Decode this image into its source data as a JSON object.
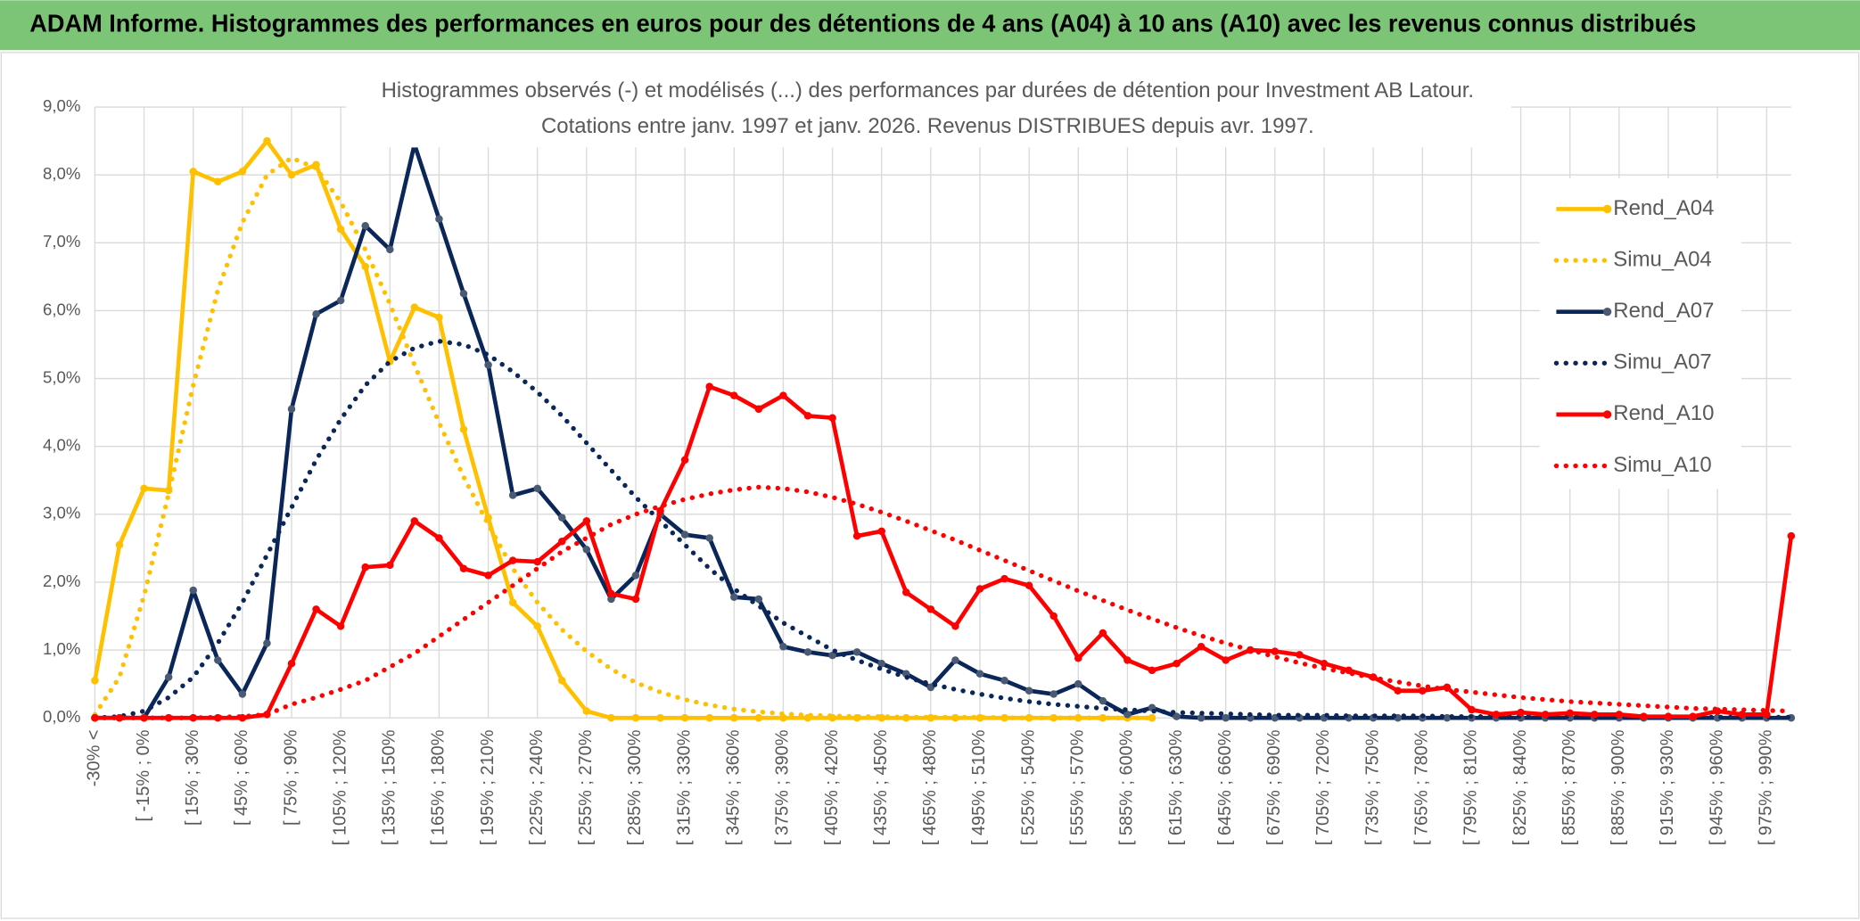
{
  "header": {
    "title": "ADAM Informe. Histogrammes des performances en euros pour des détentions de 4 ans (A04) à 10 ans (A10) avec les revenus connus distribués"
  },
  "chart_data": {
    "type": "line",
    "title": "Histogrammes observés (-) et modélisés (...) des performances par durées de détention pour Investment AB Latour.",
    "subtitle": "Cotations entre janv. 1997 et janv. 2026. Revenus DISTRIBUES depuis avr. 1997.",
    "categories": [
      "-30% <",
      null,
      "[ -15% ; 0%",
      null,
      "[ 15% ; 30%",
      null,
      "[ 45% ; 60%",
      null,
      "[ 75% ; 90%",
      null,
      "[ 105% ; 120%",
      null,
      "[ 135% ; 150%",
      null,
      "[ 165% ; 180%",
      null,
      "[ 195% ; 210%",
      null,
      "[ 225% ; 240%",
      null,
      "[ 255% ; 270%",
      null,
      "[ 285% ; 300%",
      null,
      "[ 315% ; 330%",
      null,
      "[ 345% ; 360%",
      null,
      "[ 375% ; 390%",
      null,
      "[ 405% ; 420%",
      null,
      "[ 435% ; 450%",
      null,
      "[ 465% ; 480%",
      null,
      "[ 495% ; 510%",
      null,
      "[ 525% ; 540%",
      null,
      "[ 555% ; 570%",
      null,
      "[ 585% ; 600%",
      null,
      "[ 615% ; 630%",
      null,
      "[ 645% ; 660%",
      null,
      "[ 675% ; 690%",
      null,
      "[ 705% ; 720%",
      null,
      "[ 735% ; 750%",
      null,
      "[ 765% ; 780%",
      null,
      "[ 795% ; 810%",
      null,
      "[ 825% ; 840%",
      null,
      "[ 855% ; 870%",
      null,
      "[ 885% ; 900%",
      null,
      "[ 915% ; 930%",
      null,
      "[ 945% ; 960%",
      null,
      "[ 975% ; 990%",
      null
    ],
    "ylim": [
      0,
      9
    ],
    "yticks": [
      {
        "value": 0,
        "label": "0,0%"
      },
      {
        "value": 1,
        "label": "1,0%"
      },
      {
        "value": 2,
        "label": "2,0%"
      },
      {
        "value": 3,
        "label": "3,0%"
      },
      {
        "value": 4,
        "label": "4,0%"
      },
      {
        "value": 5,
        "label": "5,0%"
      },
      {
        "value": 6,
        "label": "6,0%"
      },
      {
        "value": 7,
        "label": "7,0%"
      },
      {
        "value": 8,
        "label": "8,0%"
      },
      {
        "value": 9,
        "label": "9,0%"
      }
    ],
    "grid": true,
    "legend": "upper right",
    "series": [
      {
        "name": "Rend_A04",
        "color": "#ffc000",
        "style": "solid",
        "markers": true,
        "values": [
          0.55,
          2.55,
          3.38,
          3.35,
          8.05,
          7.9,
          8.05,
          8.5,
          8.0,
          8.15,
          7.2,
          6.65,
          5.25,
          6.05,
          5.9,
          4.25,
          2.95,
          1.7,
          1.35,
          0.55,
          0.1,
          0,
          0,
          0,
          0,
          0,
          0,
          0,
          0,
          0,
          0,
          0,
          0,
          0,
          0,
          0,
          0,
          0,
          0,
          0,
          0,
          0,
          0,
          0,
          null,
          null,
          null,
          null,
          null,
          null,
          null,
          null,
          null,
          null,
          null,
          null,
          null,
          null,
          null,
          null,
          null,
          null,
          null,
          null,
          null,
          null,
          null,
          null,
          null,
          null
        ]
      },
      {
        "name": "Simu_A04",
        "color": "#ffc000",
        "style": "dotted",
        "markers": false,
        "values": [
          0.05,
          0.6,
          1.8,
          3.3,
          4.9,
          6.3,
          7.3,
          8.0,
          8.25,
          8.1,
          7.6,
          6.9,
          6.1,
          5.2,
          4.35,
          3.55,
          2.85,
          2.2,
          1.7,
          1.3,
          0.98,
          0.72,
          0.52,
          0.38,
          0.27,
          0.19,
          0.13,
          0.09,
          0.06,
          0.04,
          0.03,
          0.02,
          0.02,
          0.01,
          0.01,
          0.01,
          0.01,
          0,
          0,
          0,
          0,
          0,
          0,
          0,
          null,
          null,
          null,
          null,
          null,
          null,
          null,
          null,
          null,
          null,
          null,
          null,
          null,
          null,
          null,
          null,
          null,
          null,
          null,
          null,
          null,
          null,
          null,
          null,
          null,
          null
        ]
      },
      {
        "name": "Rend_A07",
        "color": "#0b2659",
        "style": "solid",
        "markers": true,
        "values": [
          0,
          0,
          0,
          0.6,
          1.88,
          0.85,
          0.35,
          1.1,
          4.55,
          5.95,
          6.15,
          7.25,
          6.9,
          8.45,
          7.35,
          6.25,
          5.2,
          3.28,
          3.38,
          2.95,
          2.48,
          1.75,
          2.1,
          3.0,
          2.7,
          2.65,
          1.78,
          1.75,
          1.05,
          0.97,
          0.92,
          0.97,
          0.8,
          0.65,
          0.45,
          0.85,
          0.65,
          0.55,
          0.4,
          0.35,
          0.5,
          0.25,
          0.05,
          0.15,
          0.02,
          0,
          0,
          0,
          0,
          0,
          0,
          0,
          0,
          0,
          0,
          0,
          0,
          0,
          0,
          0,
          0,
          0,
          0,
          0,
          0,
          0,
          0,
          0,
          0,
          0
        ]
      },
      {
        "name": "Simu_A07",
        "color": "#0b2659",
        "style": "dotted",
        "markers": false,
        "values": [
          0,
          0.02,
          0.1,
          0.3,
          0.6,
          1.1,
          1.7,
          2.4,
          3.1,
          3.8,
          4.4,
          4.9,
          5.25,
          5.45,
          5.55,
          5.5,
          5.35,
          5.1,
          4.8,
          4.45,
          4.05,
          3.65,
          3.25,
          2.9,
          2.55,
          2.2,
          1.9,
          1.65,
          1.4,
          1.2,
          1.0,
          0.85,
          0.72,
          0.6,
          0.5,
          0.42,
          0.35,
          0.29,
          0.24,
          0.2,
          0.17,
          0.14,
          0.12,
          0.1,
          0.08,
          0.07,
          0.06,
          0.05,
          0.04,
          0.04,
          0.04,
          0.03,
          0.03,
          0.03,
          0.03,
          0.02,
          0.02,
          0.02,
          0.02,
          0.02,
          0.02,
          0.01,
          0.01,
          0.01,
          0.01,
          0.01,
          0.01,
          0.01,
          0.01,
          0.01
        ]
      },
      {
        "name": "Rend_A10",
        "color": "#ff0000",
        "style": "solid",
        "markers": true,
        "values": [
          0,
          0,
          0,
          0,
          0,
          0,
          0,
          0.05,
          0.8,
          1.6,
          1.35,
          2.22,
          2.25,
          2.9,
          2.65,
          2.2,
          2.1,
          2.32,
          2.3,
          2.6,
          2.9,
          1.83,
          1.75,
          3.05,
          3.8,
          4.88,
          4.75,
          4.55,
          4.75,
          4.45,
          4.42,
          2.68,
          2.75,
          1.85,
          1.6,
          1.35,
          1.9,
          2.05,
          1.95,
          1.5,
          0.88,
          1.25,
          0.85,
          0.7,
          0.8,
          1.05,
          0.85,
          1.0,
          0.98,
          0.93,
          0.8,
          0.7,
          0.6,
          0.4,
          0.4,
          0.45,
          0.12,
          0.05,
          0.08,
          0.05,
          0.07,
          0.05,
          0.05,
          0.02,
          0.02,
          0.02,
          0.1,
          0.05,
          0.05,
          2.68
        ]
      },
      {
        "name": "Simu_A10",
        "color": "#ff0000",
        "style": "dotted",
        "markers": false,
        "values": [
          0,
          0,
          0,
          0,
          0,
          0.01,
          0.02,
          0.05,
          0.2,
          0.3,
          0.42,
          0.55,
          0.75,
          0.95,
          1.2,
          1.45,
          1.7,
          1.95,
          2.2,
          2.45,
          2.65,
          2.85,
          3.0,
          3.12,
          3.22,
          3.3,
          3.36,
          3.4,
          3.38,
          3.33,
          3.25,
          3.15,
          3.03,
          2.9,
          2.76,
          2.62,
          2.47,
          2.32,
          2.17,
          2.02,
          1.87,
          1.73,
          1.59,
          1.46,
          1.33,
          1.21,
          1.1,
          1.0,
          0.9,
          0.81,
          0.73,
          0.66,
          0.59,
          0.53,
          0.47,
          0.42,
          0.38,
          0.34,
          0.3,
          0.27,
          0.24,
          0.22,
          0.2,
          0.18,
          0.16,
          0.14,
          0.13,
          0.12,
          0.11,
          0.1
        ]
      }
    ]
  }
}
